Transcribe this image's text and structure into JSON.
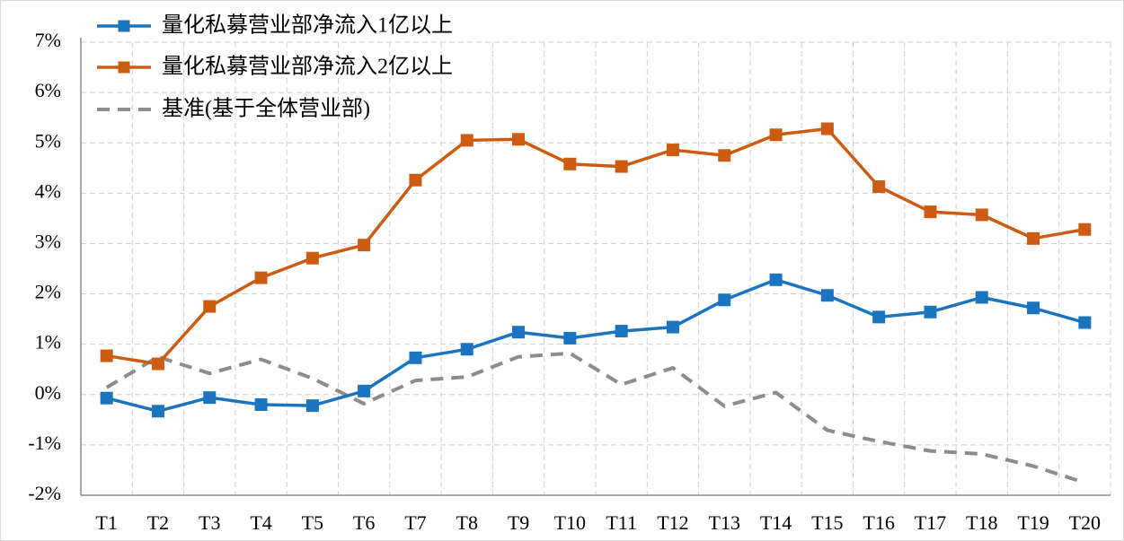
{
  "chart_data": {
    "type": "line",
    "categories": [
      "T1",
      "T2",
      "T3",
      "T4",
      "T5",
      "T6",
      "T7",
      "T8",
      "T9",
      "T10",
      "T11",
      "T12",
      "T13",
      "T14",
      "T15",
      "T16",
      "T17",
      "T18",
      "T19",
      "T20"
    ],
    "ylim": [
      -2,
      7
    ],
    "yticks": [
      "-2%",
      "-1%",
      "0%",
      "1%",
      "2%",
      "3%",
      "4%",
      "5%",
      "6%",
      "7%"
    ],
    "grid": true,
    "legend_position": "top-left",
    "series": [
      {
        "name": "量化私募营业部净流入1亿以上",
        "color": "#1a74bf",
        "line_style": "solid",
        "marker": "square",
        "values": [
          -0.07,
          -0.33,
          -0.06,
          -0.2,
          -0.22,
          0.07,
          0.73,
          0.9,
          1.24,
          1.12,
          1.26,
          1.34,
          1.88,
          2.28,
          1.97,
          1.54,
          1.64,
          1.93,
          1.72,
          1.43
        ]
      },
      {
        "name": "量化私募营业部净流入2亿以上",
        "color": "#cd5c12",
        "line_style": "solid",
        "marker": "square",
        "values": [
          0.77,
          0.61,
          1.75,
          2.32,
          2.71,
          2.97,
          4.26,
          5.05,
          5.07,
          4.58,
          4.53,
          4.86,
          4.75,
          5.16,
          5.28,
          4.13,
          3.63,
          3.57,
          3.1,
          3.28
        ]
      },
      {
        "name": "基准(基于全体营业部)",
        "color": "#8c8c8c",
        "line_style": "dashed",
        "marker": "none",
        "values": [
          0.14,
          0.75,
          0.42,
          0.7,
          0.32,
          -0.18,
          0.28,
          0.35,
          0.75,
          0.82,
          0.2,
          0.53,
          -0.23,
          0.04,
          -0.71,
          -0.93,
          -1.12,
          -1.18,
          -1.42,
          -1.75
        ]
      }
    ]
  }
}
